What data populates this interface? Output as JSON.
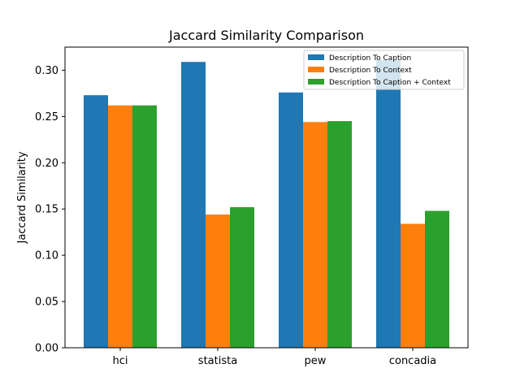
{
  "chart_data": {
    "type": "bar",
    "title": "Jaccard Similarity Comparison",
    "xlabel": "",
    "ylabel": "Jaccard Similarity",
    "categories": [
      "hci",
      "statista",
      "pew",
      "concadia"
    ],
    "series": [
      {
        "name": "Description To Caption",
        "color": "#1f77b4",
        "values": [
          0.273,
          0.309,
          0.276,
          0.311
        ]
      },
      {
        "name": "Description To Context",
        "color": "#ff7f0e",
        "values": [
          0.262,
          0.144,
          0.244,
          0.134
        ]
      },
      {
        "name": "Description To Caption + Context",
        "color": "#2ca02c",
        "values": [
          0.262,
          0.152,
          0.245,
          0.148
        ]
      }
    ],
    "ylim": [
      0,
      0.325
    ],
    "yticks": [
      "0.00",
      "0.05",
      "0.10",
      "0.15",
      "0.20",
      "0.25",
      "0.30"
    ],
    "grid": false,
    "legend_position": "top-right"
  }
}
